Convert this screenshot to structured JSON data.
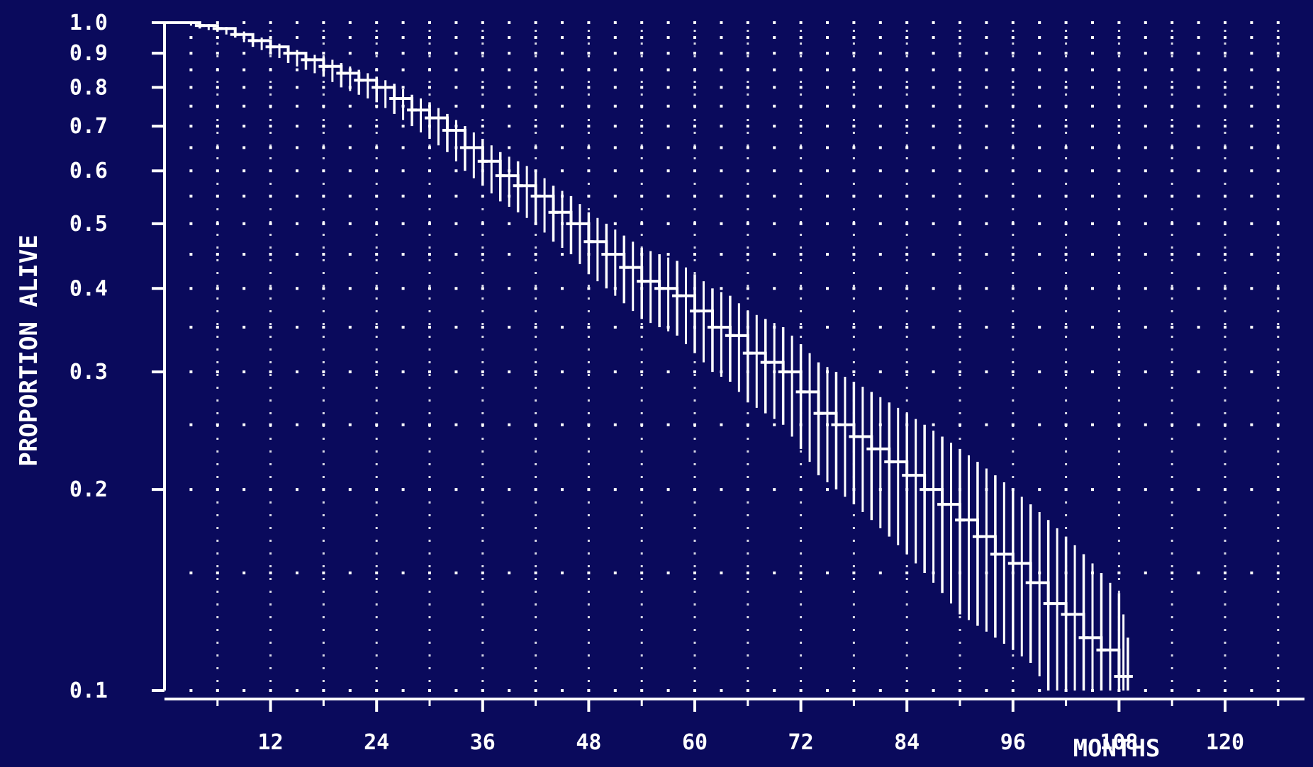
{
  "chart_data": {
    "type": "line",
    "title": "",
    "xlabel": "MONTHS",
    "ylabel": "PROPORTION ALIVE",
    "xlim": [
      0,
      128
    ],
    "ylim": [
      0.1,
      1.0
    ],
    "y_scale": "log",
    "x_ticks": [
      12,
      24,
      36,
      48,
      60,
      72,
      84,
      96,
      108,
      120
    ],
    "x_tick_labels": [
      "12",
      "24",
      "36",
      "48",
      "60",
      "72",
      "84",
      "96",
      "108",
      "120"
    ],
    "y_ticks": [
      0.1,
      0.2,
      0.3,
      0.4,
      0.5,
      0.6,
      0.7,
      0.8,
      0.9,
      1.0
    ],
    "y_tick_labels": [
      "0.1",
      "0.2",
      "0.3",
      "0.4",
      "0.5",
      "0.6",
      "0.7",
      "0.8",
      "0.9",
      "1.0"
    ],
    "grid": true,
    "background_color": "#0a0a5c",
    "foreground_color": "#ffffff",
    "series": [
      {
        "x": [
          0,
          2,
          4,
          6,
          8,
          10,
          12,
          14,
          16,
          18,
          20,
          22,
          24,
          26,
          28,
          30,
          32,
          34,
          36,
          38,
          40,
          42,
          44,
          46,
          48,
          50,
          52,
          54,
          56,
          58,
          60,
          62,
          64,
          66,
          68,
          70,
          72,
          74,
          76,
          78,
          80,
          82,
          84,
          86,
          88,
          90,
          92,
          94,
          96,
          98,
          100,
          102,
          104,
          106,
          108,
          109
        ],
        "y": [
          1.0,
          1.0,
          0.99,
          0.98,
          0.96,
          0.94,
          0.92,
          0.9,
          0.88,
          0.86,
          0.84,
          0.82,
          0.8,
          0.77,
          0.74,
          0.72,
          0.69,
          0.65,
          0.62,
          0.59,
          0.57,
          0.55,
          0.52,
          0.5,
          0.47,
          0.45,
          0.43,
          0.41,
          0.4,
          0.39,
          0.37,
          0.35,
          0.34,
          0.32,
          0.31,
          0.3,
          0.28,
          0.26,
          0.25,
          0.24,
          0.23,
          0.22,
          0.21,
          0.2,
          0.19,
          0.18,
          0.17,
          0.16,
          0.155,
          0.145,
          0.135,
          0.13,
          0.12,
          0.115,
          0.105,
          0.105
        ],
        "lower": [
          1.0,
          1.0,
          0.98,
          0.97,
          0.95,
          0.92,
          0.9,
          0.87,
          0.85,
          0.83,
          0.8,
          0.78,
          0.76,
          0.73,
          0.7,
          0.67,
          0.64,
          0.6,
          0.57,
          0.54,
          0.52,
          0.5,
          0.47,
          0.45,
          0.42,
          0.4,
          0.38,
          0.36,
          0.35,
          0.34,
          0.32,
          0.3,
          0.29,
          0.27,
          0.26,
          0.25,
          0.23,
          0.21,
          0.2,
          0.19,
          0.18,
          0.17,
          0.16,
          0.15,
          0.14,
          0.13,
          0.125,
          0.12,
          0.115,
          0.11,
          0.1,
          0.1,
          0.1,
          0.1,
          0.1,
          0.1
        ],
        "upper": [
          1.0,
          1.0,
          1.0,
          0.99,
          0.98,
          0.96,
          0.94,
          0.92,
          0.9,
          0.89,
          0.87,
          0.85,
          0.83,
          0.81,
          0.78,
          0.76,
          0.73,
          0.7,
          0.67,
          0.64,
          0.62,
          0.6,
          0.57,
          0.55,
          0.52,
          0.5,
          0.48,
          0.46,
          0.45,
          0.44,
          0.42,
          0.4,
          0.39,
          0.37,
          0.36,
          0.35,
          0.33,
          0.31,
          0.3,
          0.29,
          0.28,
          0.27,
          0.26,
          0.25,
          0.24,
          0.23,
          0.22,
          0.21,
          0.2,
          0.19,
          0.18,
          0.17,
          0.16,
          0.15,
          0.14,
          0.12
        ]
      }
    ]
  }
}
